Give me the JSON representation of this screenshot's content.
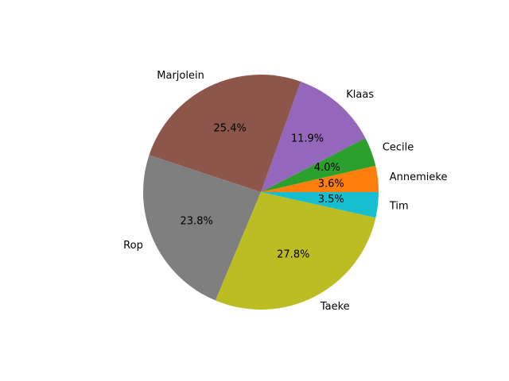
{
  "chart_data": {
    "type": "pie",
    "title": "",
    "start_angle_deg": 0,
    "direction": "counterclockwise",
    "label_order": "counterclockwise from 3 o'clock",
    "slices": [
      {
        "label": "Annemieke",
        "value": 3.6,
        "pct_label": "3.6%",
        "color": "#ff7f0e"
      },
      {
        "label": "Cecile",
        "value": 4.0,
        "pct_label": "4.0%",
        "color": "#2ca02c"
      },
      {
        "label": "Klaas",
        "value": 11.9,
        "pct_label": "11.9%",
        "color": "#9467bd"
      },
      {
        "label": "Marjolein",
        "value": 25.4,
        "pct_label": "25.4%",
        "color": "#8c564b"
      },
      {
        "label": "Rop",
        "value": 23.8,
        "pct_label": "23.8%",
        "color": "#7f7f7f"
      },
      {
        "label": "Taeke",
        "value": 27.8,
        "pct_label": "27.8%",
        "color": "#bcbd22"
      },
      {
        "label": "Tim",
        "value": 3.5,
        "pct_label": "3.5%",
        "color": "#17becf"
      }
    ]
  }
}
